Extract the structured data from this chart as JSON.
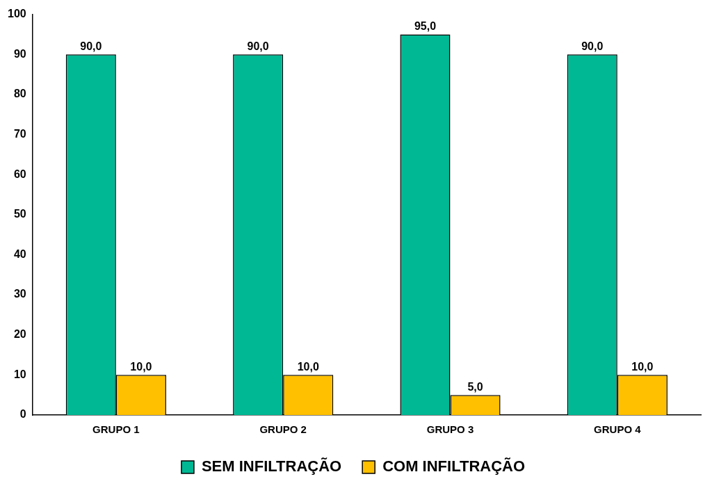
{
  "chart_data": {
    "type": "bar",
    "categories": [
      "GRUPO 1",
      "GRUPO 2",
      "GRUPO 3",
      "GRUPO 4"
    ],
    "series": [
      {
        "name": "SEM INFILTRAÇÃO",
        "color": "#00b894",
        "values": [
          90,
          90,
          95,
          90
        ],
        "value_labels": [
          "90,0",
          "90,0",
          "95,0",
          "90,0"
        ]
      },
      {
        "name": "COM INFILTRAÇÃO",
        "color": "#ffc000",
        "values": [
          10,
          10,
          5,
          10
        ],
        "value_labels": [
          "10,0",
          "10,0",
          "5,0",
          "10,0"
        ]
      }
    ],
    "ylim": [
      0,
      100
    ],
    "yticks": [
      0,
      10,
      20,
      30,
      40,
      50,
      60,
      70,
      80,
      90,
      100
    ],
    "grid": false,
    "legend": "bottom"
  }
}
